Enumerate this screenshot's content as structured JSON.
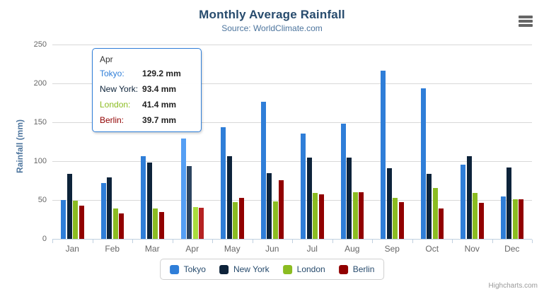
{
  "header": {
    "title": "Monthly Average Rainfall",
    "subtitle": "Source: WorldClimate.com"
  },
  "chart_data": {
    "type": "bar",
    "title": "Monthly Average Rainfall",
    "subtitle": "Source: WorldClimate.com",
    "categories": [
      "Jan",
      "Feb",
      "Mar",
      "Apr",
      "May",
      "Jun",
      "Jul",
      "Aug",
      "Sep",
      "Oct",
      "Nov",
      "Dec"
    ],
    "series": [
      {
        "name": "Tokyo",
        "color": "#2f7ed8",
        "hover_color": "#559ff4",
        "values": [
          49.9,
          71.5,
          106.4,
          129.2,
          144.0,
          176.0,
          135.6,
          148.5,
          216.4,
          194.1,
          95.6,
          54.4
        ]
      },
      {
        "name": "New York",
        "color": "#0d233a",
        "hover_color": "#2d4560",
        "values": [
          83.6,
          78.8,
          98.5,
          93.4,
          106.0,
          84.5,
          105.0,
          104.3,
          91.2,
          83.5,
          106.6,
          92.3
        ]
      },
      {
        "name": "London",
        "color": "#8bbc21",
        "hover_color": "#a9dc3d",
        "values": [
          48.9,
          38.8,
          39.3,
          41.4,
          47.0,
          48.3,
          59.0,
          59.6,
          52.4,
          65.2,
          59.3,
          51.2
        ]
      },
      {
        "name": "Berlin",
        "color": "#910000",
        "hover_color": "#b52222",
        "values": [
          42.4,
          33.2,
          34.5,
          39.7,
          52.6,
          75.5,
          57.4,
          60.4,
          47.6,
          39.1,
          46.8,
          51.1
        ]
      }
    ],
    "xlabel": "",
    "ylabel": "Rainfall (mm)",
    "ylim": [
      0,
      250
    ],
    "yticks": [
      0,
      50,
      100,
      150,
      200,
      250
    ],
    "grid": true,
    "legend_position": "bottom",
    "hovered_category": "Apr"
  },
  "tooltip": {
    "header": "Apr",
    "rows": [
      {
        "label": "Tokyo:",
        "value": "129.2 mm",
        "color": "#2f7ed8"
      },
      {
        "label": "New York:",
        "value": "93.4 mm",
        "color": "#0d233a"
      },
      {
        "label": "London:",
        "value": "41.4 mm",
        "color": "#8bbc21"
      },
      {
        "label": "Berlin:",
        "value": "39.7 mm",
        "color": "#910000"
      }
    ]
  },
  "legend": {
    "items": [
      {
        "label": "Tokyo",
        "color": "#2f7ed8"
      },
      {
        "label": "New York",
        "color": "#0d233a"
      },
      {
        "label": "London",
        "color": "#8bbc21"
      },
      {
        "label": "Berlin",
        "color": "#910000"
      }
    ]
  },
  "credits": {
    "label": "Highcharts.com"
  }
}
